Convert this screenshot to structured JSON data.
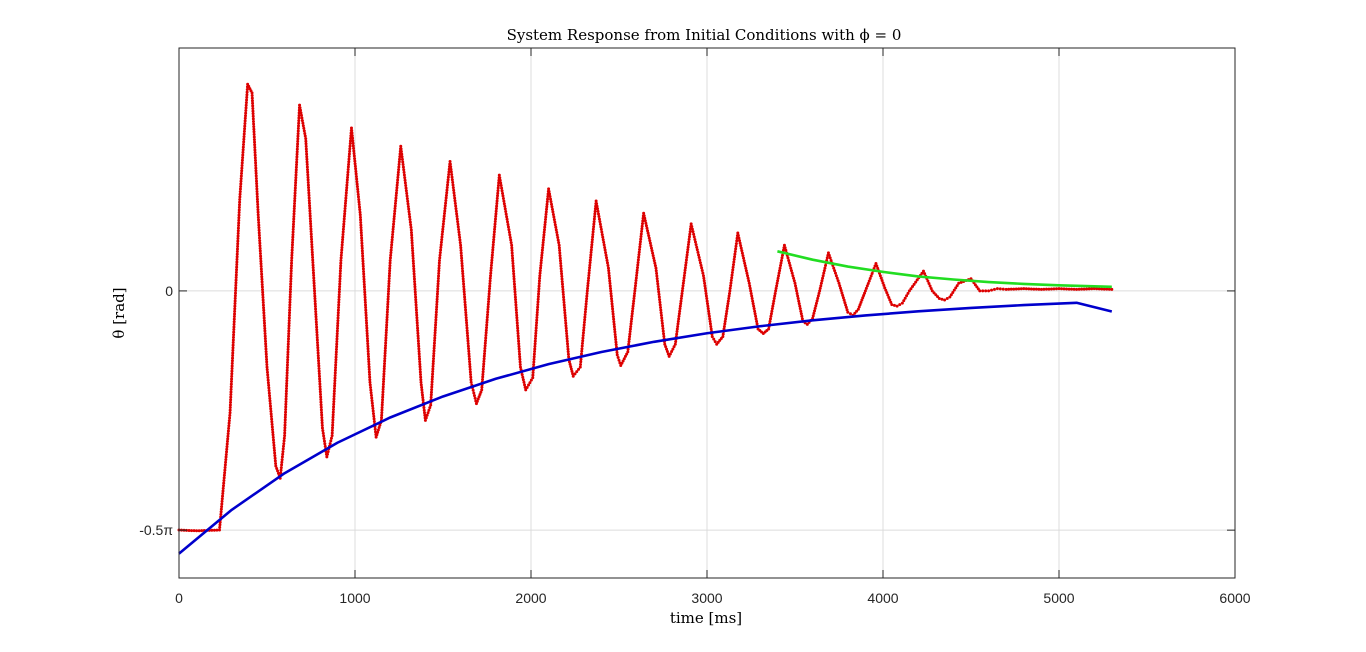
{
  "chart_data": {
    "type": "line",
    "title": "System Response from Initial Conditions with ϕ = 0",
    "xlabel": "time [ms]",
    "ylabel": "θ [rad]",
    "xlim": [
      0,
      6000
    ],
    "ylim": [
      -1.885,
      1.595
    ],
    "grid": true,
    "x_ticks": [
      {
        "value": 0,
        "label": "0"
      },
      {
        "value": 1000,
        "label": "1000"
      },
      {
        "value": 2000,
        "label": "2000"
      },
      {
        "value": 3000,
        "label": "3000"
      },
      {
        "value": 4000,
        "label": "4000"
      },
      {
        "value": 5000,
        "label": "5000"
      },
      {
        "value": 6000,
        "label": "6000"
      }
    ],
    "y_ticks": [
      {
        "value": -1.5708,
        "label": "-0.5π"
      },
      {
        "value": 0,
        "label": "0"
      }
    ],
    "series": [
      {
        "color": "#dd0000",
        "style": "dots",
        "x": [
          0,
          100,
          230,
          290,
          345,
          390,
          415,
          450,
          500,
          550,
          575,
          600,
          640,
          685,
          720,
          770,
          815,
          840,
          870,
          920,
          980,
          1030,
          1085,
          1120,
          1150,
          1200,
          1260,
          1320,
          1375,
          1400,
          1430,
          1480,
          1540,
          1600,
          1660,
          1690,
          1720,
          1770,
          1820,
          1890,
          1940,
          1970,
          2010,
          2050,
          2100,
          2160,
          2215,
          2240,
          2280,
          2320,
          2370,
          2440,
          2490,
          2510,
          2550,
          2590,
          2640,
          2710,
          2760,
          2785,
          2820,
          2860,
          2910,
          2980,
          3030,
          3055,
          3090,
          3130,
          3175,
          3240,
          3290,
          3320,
          3350,
          3390,
          3440,
          3500,
          3545,
          3570,
          3600,
          3640,
          3690,
          3750,
          3800,
          3830,
          3860,
          3900,
          3960,
          4010,
          4050,
          4080,
          4110,
          4150,
          4230,
          4280,
          4320,
          4350,
          4380,
          4430,
          4500,
          4550,
          4600,
          4650,
          4700,
          4800,
          4900,
          5000,
          5100,
          5200,
          5300
        ],
        "y": [
          -1.57,
          -1.575,
          -1.57,
          -0.8,
          0.6,
          1.357,
          1.3,
          0.5,
          -0.5,
          -1.15,
          -1.23,
          -0.95,
          0.2,
          1.22,
          1.0,
          0.0,
          -0.9,
          -1.09,
          -0.95,
          0.2,
          1.07,
          0.5,
          -0.6,
          -0.96,
          -0.85,
          0.2,
          0.95,
          0.4,
          -0.6,
          -0.85,
          -0.75,
          0.2,
          0.85,
          0.3,
          -0.6,
          -0.74,
          -0.65,
          0.1,
          0.76,
          0.3,
          -0.5,
          -0.65,
          -0.57,
          0.1,
          0.67,
          0.3,
          -0.45,
          -0.56,
          -0.5,
          0.0,
          0.59,
          0.15,
          -0.42,
          -0.49,
          -0.4,
          0.0,
          0.51,
          0.15,
          -0.35,
          -0.43,
          -0.35,
          0.0,
          0.44,
          0.1,
          -0.3,
          -0.35,
          -0.3,
          0.0,
          0.38,
          0.05,
          -0.25,
          -0.28,
          -0.25,
          0.0,
          0.3,
          0.05,
          -0.2,
          -0.22,
          -0.18,
          0.0,
          0.25,
          0.05,
          -0.14,
          -0.16,
          -0.12,
          0.0,
          0.18,
          0.02,
          -0.09,
          -0.1,
          -0.08,
          0.0,
          0.13,
          0.0,
          -0.05,
          -0.06,
          -0.04,
          0.05,
          0.08,
          0.0,
          0.0,
          0.015,
          0.01,
          0.015,
          0.01,
          0.015,
          0.01,
          0.015,
          0.01
        ]
      },
      {
        "color": "#0000cc",
        "style": "line",
        "x": [
          0,
          300,
          600,
          900,
          1200,
          1500,
          1800,
          2100,
          2400,
          2700,
          3000,
          3300,
          3600,
          3900,
          4200,
          4500,
          4800,
          5100,
          5300
        ],
        "y": [
          -1.725,
          -1.437,
          -1.197,
          -0.997,
          -0.831,
          -0.693,
          -0.577,
          -0.481,
          -0.401,
          -0.334,
          -0.278,
          -0.232,
          -0.193,
          -0.161,
          -0.134,
          -0.112,
          -0.093,
          -0.078,
          -0.135
        ]
      },
      {
        "color": "#22dd22",
        "style": "line",
        "x": [
          3400,
          3600,
          3800,
          4000,
          4200,
          4400,
          4600,
          4800,
          5000,
          5200,
          5300
        ],
        "y": [
          0.26,
          0.205,
          0.16,
          0.125,
          0.095,
          0.075,
          0.058,
          0.046,
          0.037,
          0.03,
          0.027
        ]
      }
    ]
  }
}
